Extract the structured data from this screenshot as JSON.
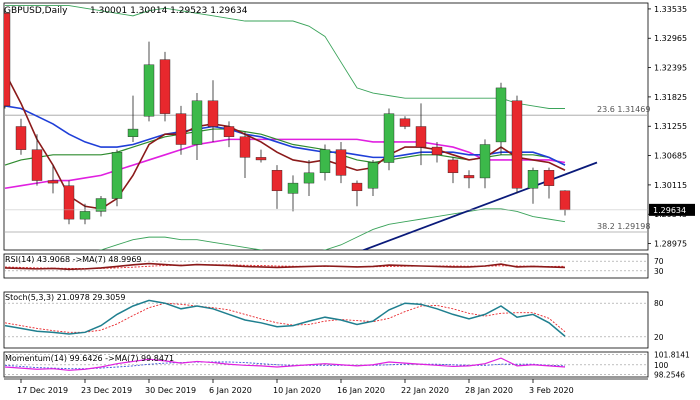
{
  "header": {
    "symbol": "GBPUSD,Daily",
    "ohlc": "1.30001 1.30014 1.29523 1.29634"
  },
  "current_price_label": "1.29634",
  "fib_labels": [
    {
      "text": "23.6 1.31469",
      "price": 1.3147
    },
    {
      "text": "38.2 1.29198",
      "price": 1.292
    }
  ],
  "panels": {
    "rsi": {
      "label": "RSI(14) 43.9068  ->MA(7) 48.9969",
      "levels": [
        "70",
        "30"
      ]
    },
    "stoch": {
      "label": "Stoch(5,3,3) 21.0978 29.3059",
      "levels": [
        "80",
        "20"
      ]
    },
    "momentum": {
      "label": "Momentum(14) 99.6426  ->MA(7) 99.8471",
      "levels": [
        "101.8141",
        "100",
        "98.2546"
      ]
    }
  },
  "x_labels": [
    "17 Dec 2019",
    "23 Dec 2019",
    "30 Dec 2019",
    "6 Jan 2020",
    "10 Jan 2020",
    "16 Jan 2020",
    "22 Jan 2020",
    "28 Jan 2020",
    "3 Feb 2020"
  ],
  "chart_data": {
    "type": "candlestick",
    "title": "GBPUSD,Daily",
    "y_ticks": [
      "1.33535",
      "1.32965",
      "1.32395",
      "1.31825",
      "1.31255",
      "1.30685",
      "1.30115",
      "1.29545",
      "1.28975"
    ],
    "ylim": [
      1.2885,
      1.3365
    ],
    "colors": {
      "bull": "#3cb94a",
      "bear": "#e8282d",
      "ema_fast": "#8b1a1a",
      "ema_slow": "#1f3fd8",
      "ma_green": "#2e8b2e",
      "ma_magenta": "#e020e0",
      "bb": "#3aa35a",
      "trend": "#0a1a7a",
      "fib": "#a0a0a0"
    },
    "candles": [
      {
        "date": "16 Dec 2019",
        "o": 1.3345,
        "h": 1.335,
        "l": 1.316,
        "c": 1.3165
      },
      {
        "date": "17 Dec 2019",
        "o": 1.3125,
        "h": 1.314,
        "l": 1.307,
        "c": 1.308
      },
      {
        "date": "18 Dec 2019",
        "o": 1.308,
        "h": 1.311,
        "l": 1.301,
        "c": 1.302
      },
      {
        "date": "19 Dec 2019",
        "o": 1.302,
        "h": 1.305,
        "l": 1.2995,
        "c": 1.3015
      },
      {
        "date": "20 Dec 2019",
        "o": 1.301,
        "h": 1.302,
        "l": 1.2935,
        "c": 1.2945
      },
      {
        "date": "23 Dec 2019",
        "o": 1.2945,
        "h": 1.2975,
        "l": 1.2935,
        "c": 1.296
      },
      {
        "date": "24 Dec 2019",
        "o": 1.296,
        "h": 1.299,
        "l": 1.295,
        "c": 1.2985
      },
      {
        "date": "26 Dec 2019",
        "o": 1.2985,
        "h": 1.308,
        "l": 1.297,
        "c": 1.3075
      },
      {
        "date": "27 Dec 2019",
        "o": 1.3105,
        "h": 1.3185,
        "l": 1.3095,
        "c": 1.312
      },
      {
        "date": "30 Dec 2019",
        "o": 1.3145,
        "h": 1.329,
        "l": 1.3135,
        "c": 1.3245
      },
      {
        "date": "31 Dec 2019",
        "o": 1.3255,
        "h": 1.327,
        "l": 1.3135,
        "c": 1.315
      },
      {
        "date": "2 Jan 2020",
        "o": 1.315,
        "h": 1.3165,
        "l": 1.307,
        "c": 1.309
      },
      {
        "date": "3 Jan 2020",
        "o": 1.309,
        "h": 1.319,
        "l": 1.306,
        "c": 1.3175
      },
      {
        "date": "6 Jan 2020",
        "o": 1.3175,
        "h": 1.3215,
        "l": 1.3095,
        "c": 1.3125
      },
      {
        "date": "7 Jan 2020",
        "o": 1.3125,
        "h": 1.3135,
        "l": 1.3085,
        "c": 1.3105
      },
      {
        "date": "8 Jan 2020",
        "o": 1.3105,
        "h": 1.3115,
        "l": 1.3025,
        "c": 1.3065
      },
      {
        "date": "9 Jan 2020",
        "o": 1.3065,
        "h": 1.308,
        "l": 1.3055,
        "c": 1.306
      },
      {
        "date": "10 Jan 2020",
        "o": 1.304,
        "h": 1.305,
        "l": 1.2965,
        "c": 1.3
      },
      {
        "date": "13 Jan 2020",
        "o": 1.2995,
        "h": 1.303,
        "l": 1.296,
        "c": 1.3015
      },
      {
        "date": "14 Jan 2020",
        "o": 1.3015,
        "h": 1.306,
        "l": 1.299,
        "c": 1.3035
      },
      {
        "date": "15 Jan 2020",
        "o": 1.3035,
        "h": 1.309,
        "l": 1.302,
        "c": 1.308
      },
      {
        "date": "16 Jan 2020",
        "o": 1.308,
        "h": 1.3095,
        "l": 1.3015,
        "c": 1.303
      },
      {
        "date": "17 Jan 2020",
        "o": 1.3015,
        "h": 1.302,
        "l": 1.297,
        "c": 1.3
      },
      {
        "date": "20 Jan 2020",
        "o": 1.3005,
        "h": 1.306,
        "l": 1.299,
        "c": 1.3055
      },
      {
        "date": "21 Jan 2020",
        "o": 1.3055,
        "h": 1.316,
        "l": 1.304,
        "c": 1.315
      },
      {
        "date": "22 Jan 2020",
        "o": 1.314,
        "h": 1.3145,
        "l": 1.312,
        "c": 1.3125
      },
      {
        "date": "23 Jan 2020",
        "o": 1.3125,
        "h": 1.317,
        "l": 1.305,
        "c": 1.3085
      },
      {
        "date": "24 Jan 2020",
        "o": 1.3085,
        "h": 1.3095,
        "l": 1.3055,
        "c": 1.307
      },
      {
        "date": "27 Jan 2020",
        "o": 1.306,
        "h": 1.3065,
        "l": 1.3015,
        "c": 1.3035
      },
      {
        "date": "28 Jan 2020",
        "o": 1.303,
        "h": 1.304,
        "l": 1.3005,
        "c": 1.3025
      },
      {
        "date": "29 Jan 2020",
        "o": 1.3025,
        "h": 1.31,
        "l": 1.3005,
        "c": 1.309
      },
      {
        "date": "30 Jan 2020",
        "o": 1.3095,
        "h": 1.321,
        "l": 1.307,
        "c": 1.32
      },
      {
        "date": "31 Jan 2020",
        "o": 1.3175,
        "h": 1.3185,
        "l": 1.2995,
        "c": 1.3005
      },
      {
        "date": "3 Feb 2020",
        "o": 1.3005,
        "h": 1.3045,
        "l": 1.2975,
        "c": 1.304
      },
      {
        "date": "4 Feb 2020",
        "o": 1.304,
        "h": 1.3045,
        "l": 1.2985,
        "c": 1.301
      },
      {
        "date": "5 Feb 2020",
        "o": 1.3,
        "h": 1.3001,
        "l": 1.2952,
        "c": 1.2963
      }
    ],
    "overlays": {
      "ema_fast": [
        1.323,
        1.317,
        1.31,
        1.305,
        1.299,
        1.297,
        1.2965,
        1.2985,
        1.303,
        1.309,
        1.311,
        1.311,
        1.3125,
        1.313,
        1.3125,
        1.311,
        1.3095,
        1.3075,
        1.306,
        1.3055,
        1.306,
        1.305,
        1.304,
        1.3045,
        1.307,
        1.3085,
        1.3085,
        1.308,
        1.307,
        1.306,
        1.3065,
        1.3085,
        1.3065,
        1.306,
        1.3055,
        1.304
      ],
      "ema_slow": [
        1.3165,
        1.316,
        1.3145,
        1.313,
        1.311,
        1.3095,
        1.3085,
        1.3085,
        1.309,
        1.31,
        1.311,
        1.3115,
        1.312,
        1.3125,
        1.312,
        1.311,
        1.3105,
        1.3095,
        1.3085,
        1.308,
        1.3075,
        1.3075,
        1.307,
        1.3065,
        1.3065,
        1.307,
        1.3075,
        1.3075,
        1.3075,
        1.307,
        1.307,
        1.3075,
        1.3075,
        1.3075,
        1.3065,
        1.305
      ],
      "ma_green": [
        1.305,
        1.306,
        1.3065,
        1.307,
        1.307,
        1.307,
        1.307,
        1.3075,
        1.3085,
        1.3095,
        1.3105,
        1.311,
        1.3115,
        1.312,
        1.312,
        1.3115,
        1.311,
        1.31,
        1.309,
        1.3085,
        1.308,
        1.307,
        1.306,
        1.3055,
        1.306,
        1.3065,
        1.307,
        1.307,
        1.3065,
        1.306,
        1.3065,
        1.307,
        1.307,
        1.307,
        1.3065,
        1.305
      ],
      "ma_magenta": [
        1.3005,
        1.301,
        1.3015,
        1.302,
        1.302,
        1.3025,
        1.303,
        1.304,
        1.305,
        1.306,
        1.307,
        1.308,
        1.309,
        1.3095,
        1.31,
        1.31,
        1.31,
        1.31,
        1.31,
        1.31,
        1.31,
        1.31,
        1.31,
        1.3095,
        1.3095,
        1.3095,
        1.3095,
        1.309,
        1.3085,
        1.3075,
        1.306,
        1.306,
        1.306,
        1.306,
        1.306,
        1.3055
      ],
      "bb_upper": [
        1.336,
        1.336,
        1.336,
        1.336,
        1.336,
        1.3355,
        1.335,
        1.3345,
        1.334,
        1.335,
        1.3355,
        1.335,
        1.3345,
        1.334,
        1.3335,
        1.333,
        1.333,
        1.333,
        1.333,
        1.332,
        1.33,
        1.325,
        1.32,
        1.319,
        1.3185,
        1.318,
        1.318,
        1.318,
        1.318,
        1.318,
        1.318,
        1.318,
        1.317,
        1.3165,
        1.316,
        1.316
      ],
      "bb_lower": [
        1.288,
        1.288,
        1.288,
        1.288,
        1.288,
        1.288,
        1.2885,
        1.2895,
        1.2905,
        1.291,
        1.291,
        1.2905,
        1.2905,
        1.29,
        1.2895,
        1.289,
        1.2885,
        1.288,
        1.288,
        1.288,
        1.2885,
        1.2895,
        1.291,
        1.2925,
        1.2935,
        1.294,
        1.2945,
        1.295,
        1.2955,
        1.296,
        1.2965,
        1.2965,
        1.296,
        1.295,
        1.2945,
        1.294
      ]
    },
    "trend_line": {
      "x1": 22,
      "y1": 1.288,
      "x2": 37,
      "y2": 1.3055
    },
    "indicators": {
      "rsi": {
        "ylim": [
          0,
          100
        ],
        "values": [
          42,
          40,
          38,
          40,
          36,
          38,
          42,
          48,
          55,
          60,
          56,
          52,
          56,
          54,
          52,
          48,
          46,
          44,
          46,
          48,
          50,
          48,
          46,
          48,
          54,
          52,
          50,
          48,
          46,
          46,
          50,
          58,
          46,
          48,
          46,
          44
        ],
        "ma": [
          46,
          44,
          42,
          41,
          40,
          40,
          40,
          42,
          45,
          49,
          52,
          54,
          55,
          55,
          55,
          53,
          52,
          50,
          49,
          48,
          48,
          48,
          47,
          47,
          48,
          49,
          50,
          50,
          50,
          49,
          49,
          51,
          50,
          49,
          48,
          49
        ]
      },
      "stoch": {
        "ylim": [
          0,
          100
        ],
        "k": [
          40,
          35,
          30,
          28,
          25,
          28,
          40,
          60,
          75,
          85,
          80,
          70,
          75,
          70,
          60,
          50,
          45,
          38,
          40,
          48,
          55,
          50,
          42,
          48,
          68,
          80,
          78,
          70,
          60,
          52,
          60,
          75,
          55,
          60,
          45,
          21
        ],
        "d": [
          45,
          40,
          35,
          31,
          28,
          28,
          32,
          43,
          58,
          72,
          80,
          78,
          75,
          72,
          68,
          60,
          52,
          45,
          41,
          42,
          48,
          51,
          49,
          47,
          53,
          65,
          75,
          76,
          70,
          62,
          57,
          62,
          63,
          63,
          53,
          29
        ]
      },
      "momentum": {
        "ylim": [
          97.8,
          102.3
        ],
        "values": [
          99.6,
          99.4,
          99.2,
          99.3,
          99.0,
          99.2,
          99.6,
          100.2,
          100.6,
          101.0,
          100.7,
          100.3,
          100.6,
          100.4,
          100.1,
          99.9,
          99.8,
          99.6,
          99.8,
          100.0,
          100.2,
          100.0,
          99.8,
          100.0,
          100.5,
          100.3,
          100.1,
          99.9,
          99.7,
          99.8,
          100.2,
          101.2,
          99.8,
          100.0,
          99.8,
          99.6
        ],
        "ma": [
          99.9,
          99.7,
          99.5,
          99.4,
          99.3,
          99.3,
          99.4,
          99.6,
          99.8,
          100.1,
          100.3,
          100.4,
          100.5,
          100.5,
          100.5,
          100.4,
          100.2,
          100.0,
          99.9,
          99.9,
          99.9,
          99.9,
          99.9,
          99.9,
          100.0,
          100.1,
          100.1,
          100.1,
          100.0,
          99.9,
          99.9,
          100.1,
          100.1,
          100.1,
          99.9,
          99.8
        ]
      }
    }
  }
}
